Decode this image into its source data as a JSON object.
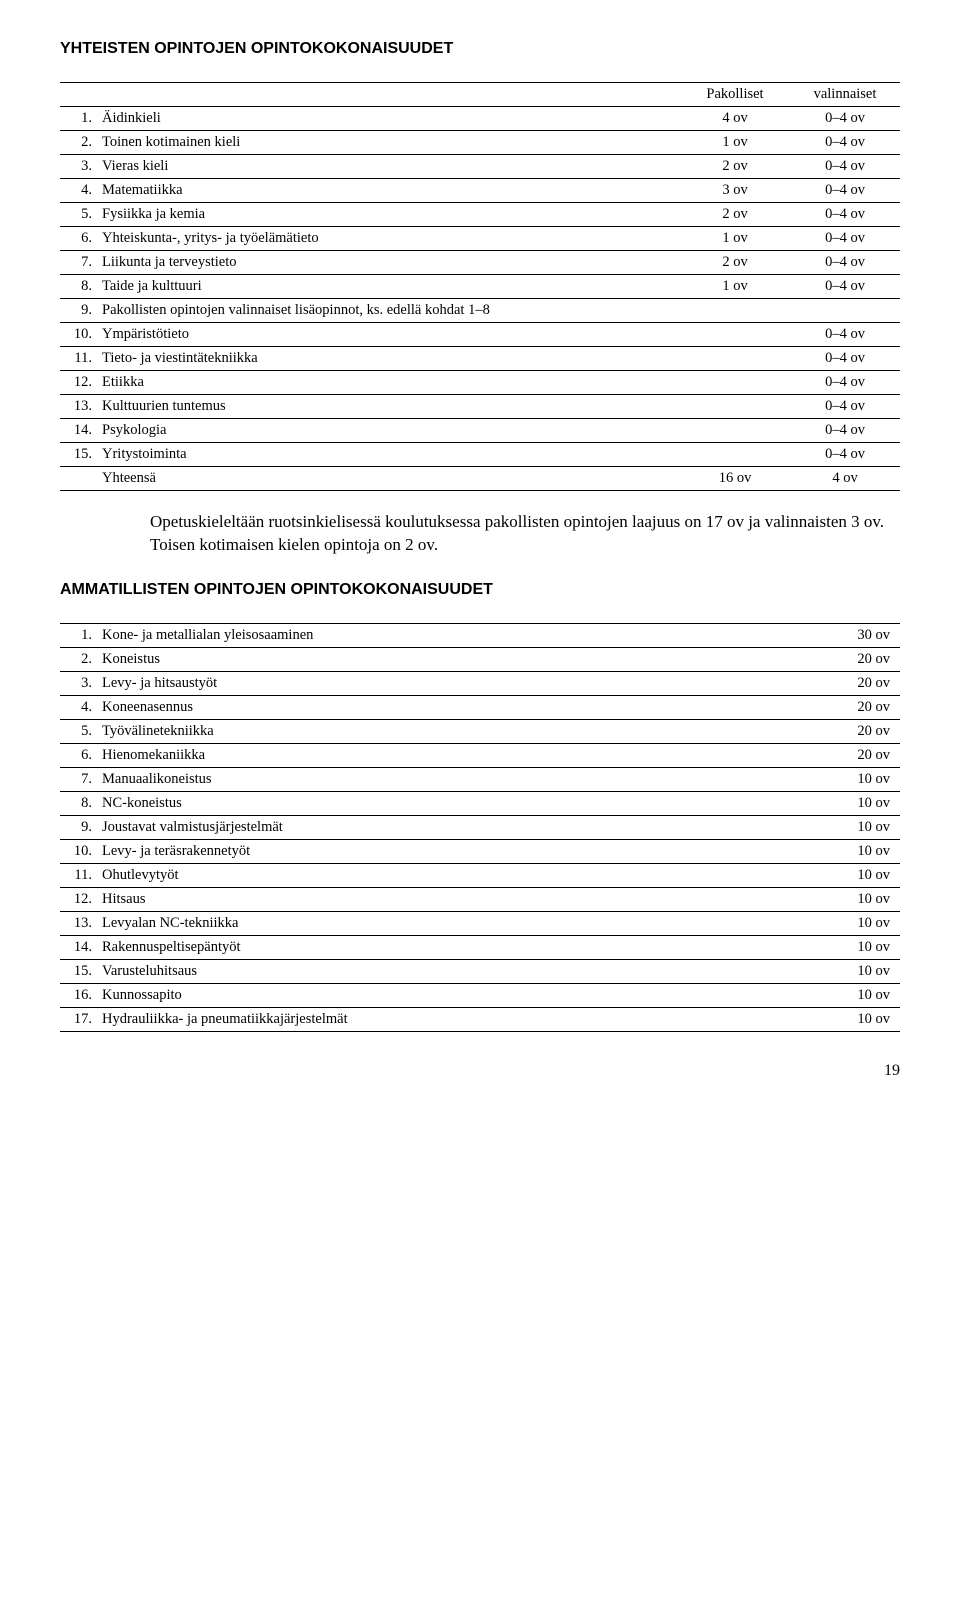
{
  "heading1": "YHTEISTEN OPINTOJEN OPINTOKOKONAISUUDET",
  "t1_headers": {
    "c1": "Pakolliset",
    "c2": "valinnaiset"
  },
  "t1_rows": [
    {
      "n": "1.",
      "label": "Äidinkieli",
      "c1": "4 ov",
      "c2": "0–4 ov"
    },
    {
      "n": "2.",
      "label": "Toinen kotimainen kieli",
      "c1": "1 ov",
      "c2": "0–4 ov"
    },
    {
      "n": "3.",
      "label": "Vieras kieli",
      "c1": "2 ov",
      "c2": "0–4 ov"
    },
    {
      "n": "4.",
      "label": "Matematiikka",
      "c1": "3 ov",
      "c2": "0–4 ov"
    },
    {
      "n": "5.",
      "label": "Fysiikka ja kemia",
      "c1": "2 ov",
      "c2": "0–4 ov"
    },
    {
      "n": "6.",
      "label": "Yhteiskunta-, yritys- ja työelämätieto",
      "c1": "1 ov",
      "c2": "0–4 ov"
    },
    {
      "n": "7.",
      "label": "Liikunta ja terveystieto",
      "c1": "2 ov",
      "c2": "0–4 ov"
    },
    {
      "n": "8.",
      "label": "Taide ja kulttuuri",
      "c1": "1 ov",
      "c2": "0–4 ov"
    },
    {
      "n": "9.",
      "label": "Pakollisten opintojen valinnaiset lisäopinnot, ks. edellä kohdat 1–8",
      "c1": "",
      "c2": ""
    },
    {
      "n": "10.",
      "label": "Ympäristötieto",
      "c1": "",
      "c2": "0–4 ov"
    },
    {
      "n": "11.",
      "label": "Tieto- ja viestintätekniikka",
      "c1": "",
      "c2": "0–4 ov"
    },
    {
      "n": "12.",
      "label": "Etiikka",
      "c1": "",
      "c2": "0–4 ov"
    },
    {
      "n": "13.",
      "label": "Kulttuurien tuntemus",
      "c1": "",
      "c2": "0–4 ov"
    },
    {
      "n": "14.",
      "label": "Psykologia",
      "c1": "",
      "c2": "0–4 ov"
    },
    {
      "n": "15.",
      "label": "Yritystoiminta",
      "c1": "",
      "c2": "0–4 ov"
    }
  ],
  "t1_total": {
    "label": "Yhteensä",
    "c1": "16 ov",
    "c2": "4 ov"
  },
  "paragraph": "Opetuskieleltään ruotsinkielisessä koulutuksessa pakollisten opintojen laajuus on 17 ov ja valinnaisten 3 ov. Toisen kotimaisen kielen opintoja on 2 ov.",
  "heading2": "AMMATILLISTEN OPINTOJEN OPINTOKOKONAISUUDET",
  "t2_rows": [
    {
      "n": "1.",
      "label": "Kone- ja metallialan yleisosaaminen",
      "val": "30 ov"
    },
    {
      "n": "2.",
      "label": "Koneistus",
      "val": "20 ov"
    },
    {
      "n": "3.",
      "label": "Levy- ja hitsaustyöt",
      "val": "20 ov"
    },
    {
      "n": "4.",
      "label": "Koneenasennus",
      "val": "20 ov"
    },
    {
      "n": "5.",
      "label": "Työvälinetekniikka",
      "val": "20 ov"
    },
    {
      "n": "6.",
      "label": "Hienomekaniikka",
      "val": "20 ov"
    },
    {
      "n": "7.",
      "label": "Manuaalikoneistus",
      "val": "10 ov"
    },
    {
      "n": "8.",
      "label": "NC-koneistus",
      "val": "10 ov"
    },
    {
      "n": "9.",
      "label": "Joustavat valmistusjärjestelmät",
      "val": "10 ov"
    },
    {
      "n": "10.",
      "label": "Levy- ja teräsrakennetyöt",
      "val": "10 ov"
    },
    {
      "n": "11.",
      "label": "Ohutlevytyöt",
      "val": "10 ov"
    },
    {
      "n": "12.",
      "label": "Hitsaus",
      "val": "10 ov"
    },
    {
      "n": "13.",
      "label": "Levyalan NC-tekniikka",
      "val": "10 ov"
    },
    {
      "n": "14.",
      "label": "Rakennuspeltisepäntyöt",
      "val": "10 ov"
    },
    {
      "n": "15.",
      "label": "Varusteluhitsaus",
      "val": "10 ov"
    },
    {
      "n": "16.",
      "label": "Kunnossapito",
      "val": "10 ov"
    },
    {
      "n": "17.",
      "label": "Hydrauliikka- ja pneumatiikkajärjestelmät",
      "val": "10 ov"
    }
  ],
  "page_number": "19"
}
